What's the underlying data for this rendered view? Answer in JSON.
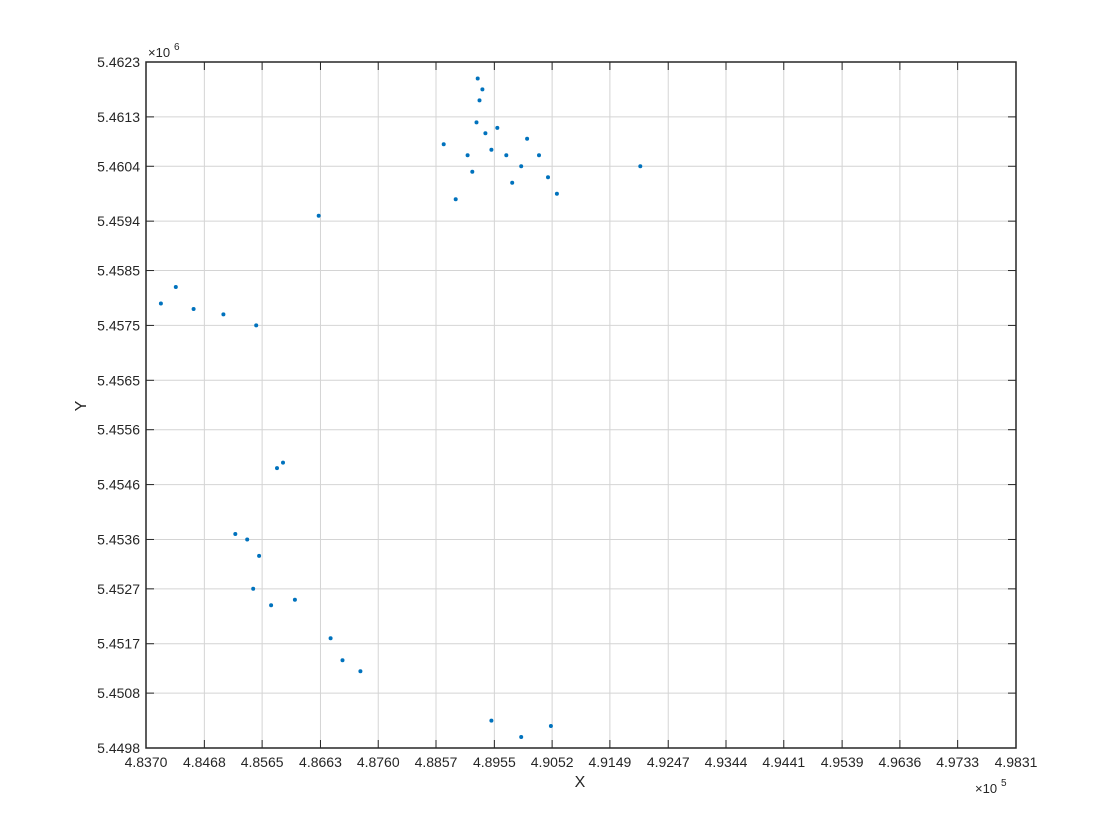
{
  "chart_data": {
    "type": "scatter",
    "title": "",
    "xlabel": "X",
    "ylabel": "Y",
    "x_exponent_label": "×10",
    "x_exponent_power": "5",
    "y_exponent_label": "×10",
    "y_exponent_power": "6",
    "xlim": [
      4.837,
      4.9831
    ],
    "ylim": [
      5.4498,
      5.4623
    ],
    "x_ticks": [
      "4.8370",
      "4.8468",
      "4.8565",
      "4.8663",
      "4.8760",
      "4.8857",
      "4.8955",
      "4.9052",
      "4.9149",
      "4.9247",
      "4.9344",
      "4.9441",
      "4.9539",
      "4.9636",
      "4.9733",
      "4.9831"
    ],
    "y_ticks": [
      "5.4498",
      "5.4508",
      "5.4517",
      "5.4527",
      "5.4536",
      "5.4546",
      "5.4556",
      "5.4565",
      "5.4575",
      "5.4585",
      "5.4594",
      "5.4604",
      "5.4613",
      "5.4623"
    ],
    "grid": true,
    "colors": {
      "all_points": "#0072BD",
      "selected_points": "#FF0000",
      "grid": "#d4d4d4",
      "axes": "#262626"
    },
    "series": [
      {
        "color": "#0072BD",
        "regions": []
      },
      {
        "color": "#FF0000",
        "regions": []
      }
    ]
  }
}
